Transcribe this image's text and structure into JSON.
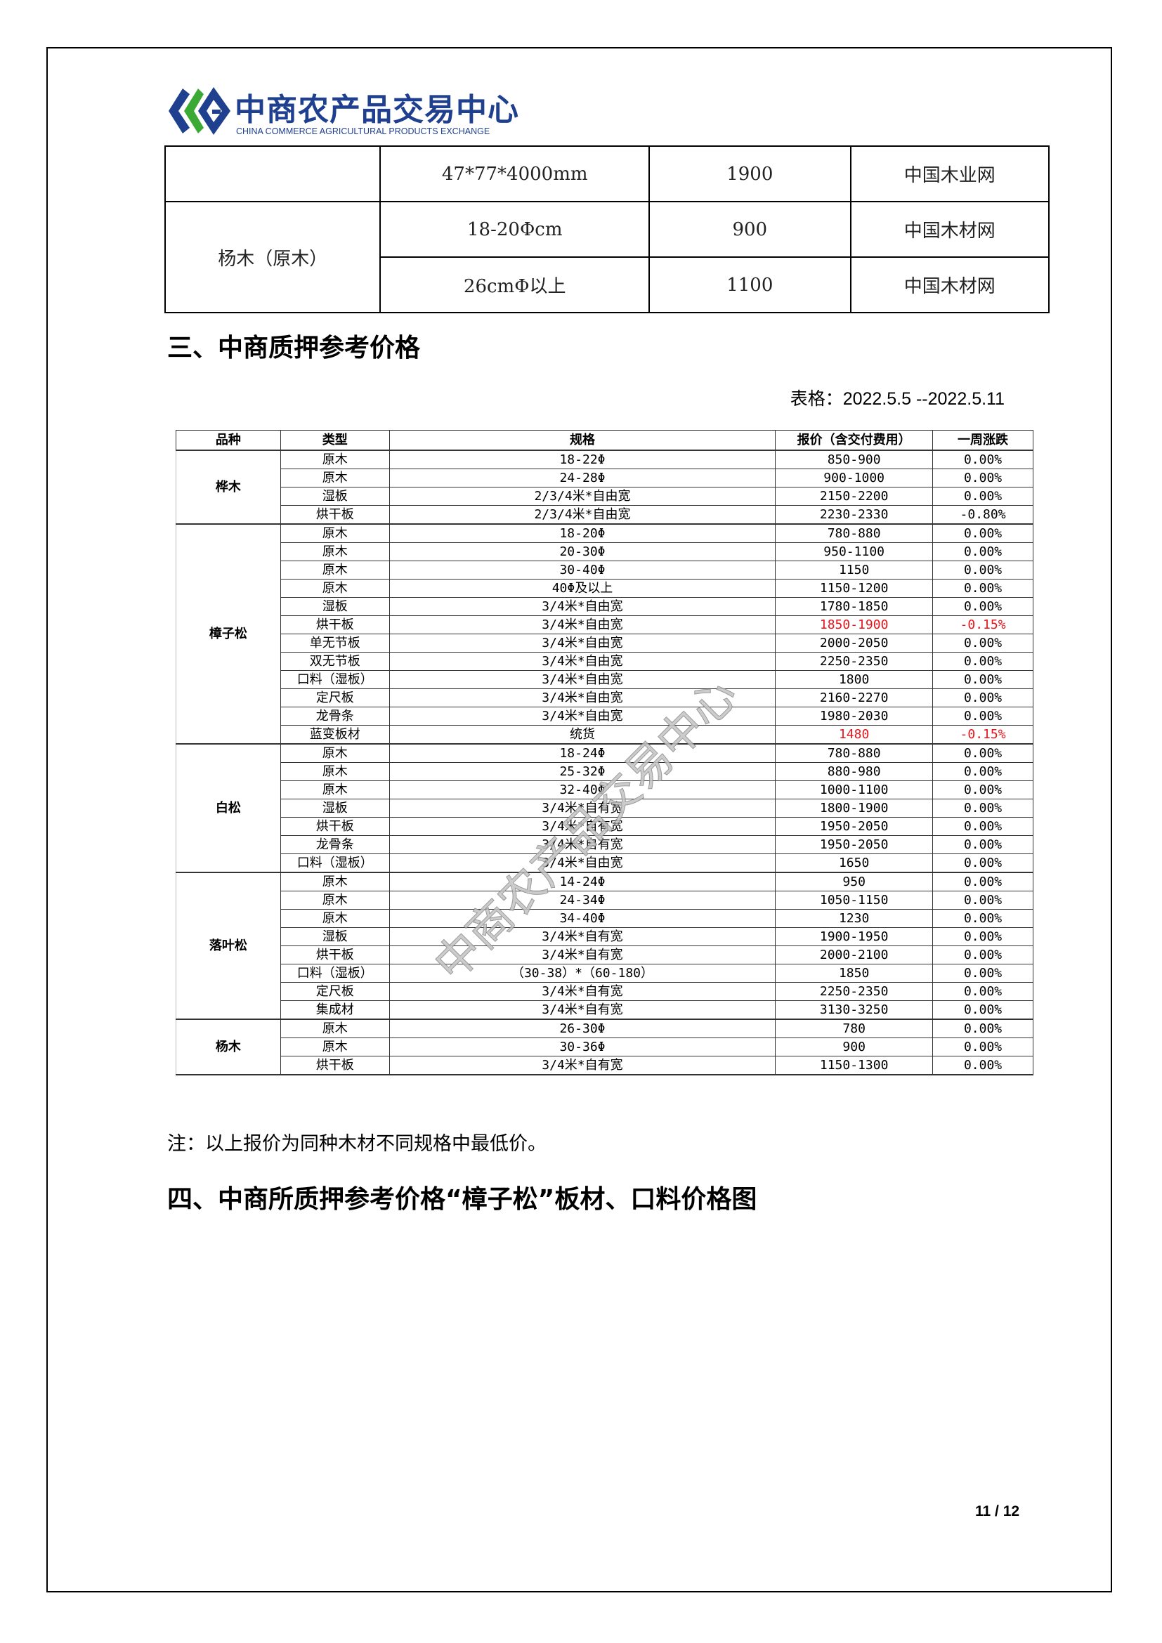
{
  "logo": {
    "name_cn": "中商农产品交易中心",
    "name_en": "CHINA COMMERCE AGRICULTURAL PRODUCTS EXCHANGE",
    "colors": {
      "blue": "#1f3f8f",
      "green": "#3aaa35"
    }
  },
  "top_table": {
    "rows": [
      {
        "variety": "",
        "spec": "47*77*4000mm",
        "price": "1900",
        "source": "中国木业网"
      },
      {
        "variety": "杨木（原木）",
        "spec": "18-20Φcm",
        "price": "900",
        "source": "中国木材网"
      },
      {
        "variety": "",
        "spec": "26cmΦ以上",
        "price": "1100",
        "source": "中国木材网"
      }
    ]
  },
  "section3": {
    "title": "三、中商质押参考价格",
    "date_label": "表格：2022.5.5 --2022.5.11"
  },
  "price_table": {
    "headers": [
      "品种",
      "类型",
      "规格",
      "报价（含交付费用）",
      "一周涨跌"
    ],
    "highlight_color": "#e8141c",
    "groups": [
      {
        "variety": "桦木",
        "rows": [
          {
            "type": "原木",
            "spec": "18-22Φ",
            "price": "850-900",
            "change": "0.00%"
          },
          {
            "type": "原木",
            "spec": "24-28Φ",
            "price": "900-1000",
            "change": "0.00%"
          },
          {
            "type": "湿板",
            "spec": "2/3/4米*自由宽",
            "price": "2150-2200",
            "change": "0.00%"
          },
          {
            "type": "烘干板",
            "spec": "2/3/4米*自由宽",
            "price": "2230-2330",
            "change": "-0.80%"
          }
        ]
      },
      {
        "variety": "樟子松",
        "rows": [
          {
            "type": "原木",
            "spec": "18-20Φ",
            "price": "780-880",
            "change": "0.00%"
          },
          {
            "type": "原木",
            "spec": "20-30Φ",
            "price": "950-1100",
            "change": "0.00%"
          },
          {
            "type": "原木",
            "spec": "30-40Φ",
            "price": "1150",
            "change": "0.00%"
          },
          {
            "type": "原木",
            "spec": "40Φ及以上",
            "price": "1150-1200",
            "change": "0.00%"
          },
          {
            "type": "湿板",
            "spec": "3/4米*自由宽",
            "price": "1780-1850",
            "change": "0.00%"
          },
          {
            "type": "烘干板",
            "spec": "3/4米*自由宽",
            "price": "1850-1900",
            "change": "-0.15%",
            "highlight": true
          },
          {
            "type": "单无节板",
            "spec": "3/4米*自由宽",
            "price": "2000-2050",
            "change": "0.00%"
          },
          {
            "type": "双无节板",
            "spec": "3/4米*自由宽",
            "price": "2250-2350",
            "change": "0.00%"
          },
          {
            "type": "口料（湿板）",
            "spec": "3/4米*自由宽",
            "price": "1800",
            "change": "0.00%"
          },
          {
            "type": "定尺板",
            "spec": "3/4米*自由宽",
            "price": "2160-2270",
            "change": "0.00%"
          },
          {
            "type": "龙骨条",
            "spec": "3/4米*自由宽",
            "price": "1980-2030",
            "change": "0.00%"
          },
          {
            "type": "蓝变板材",
            "spec": "统货",
            "price": "1480",
            "change": "-0.15%",
            "highlight": true
          }
        ]
      },
      {
        "variety": "白松",
        "rows": [
          {
            "type": "原木",
            "spec": "18-24Φ",
            "price": "780-880",
            "change": "0.00%"
          },
          {
            "type": "原木",
            "spec": "25-32Φ",
            "price": "880-980",
            "change": "0.00%"
          },
          {
            "type": "原木",
            "spec": "32-40Φ",
            "price": "1000-1100",
            "change": "0.00%"
          },
          {
            "type": "湿板",
            "spec": "3/4米*自有宽",
            "price": "1800-1900",
            "change": "0.00%"
          },
          {
            "type": "烘干板",
            "spec": "3/4米*自有宽",
            "price": "1950-2050",
            "change": "0.00%"
          },
          {
            "type": "龙骨条",
            "spec": "3/4米*自有宽",
            "price": "1950-2050",
            "change": "0.00%"
          },
          {
            "type": "口料（湿板）",
            "spec": "3/4米*自由宽",
            "price": "1650",
            "change": "0.00%"
          }
        ]
      },
      {
        "variety": "落叶松",
        "rows": [
          {
            "type": "原木",
            "spec": "14-24Φ",
            "price": "950",
            "change": "0.00%"
          },
          {
            "type": "原木",
            "spec": "24-34Φ",
            "price": "1050-1150",
            "change": "0.00%"
          },
          {
            "type": "原木",
            "spec": "34-40Φ",
            "price": "1230",
            "change": "0.00%"
          },
          {
            "type": "湿板",
            "spec": "3/4米*自有宽",
            "price": "1900-1950",
            "change": "0.00%"
          },
          {
            "type": "烘干板",
            "spec": "3/4米*自有宽",
            "price": "2000-2100",
            "change": "0.00%"
          },
          {
            "type": "口料（湿板）",
            "spec": "（30-38）*（60-180）",
            "price": "1850",
            "change": "0.00%"
          },
          {
            "type": "定尺板",
            "spec": "3/4米*自有宽",
            "price": "2250-2350",
            "change": "0.00%"
          },
          {
            "type": "集成材",
            "spec": "3/4米*自有宽",
            "price": "3130-3250",
            "change": "0.00%"
          }
        ]
      },
      {
        "variety": "杨木",
        "rows": [
          {
            "type": "原木",
            "spec": "26-30Φ",
            "price": "780",
            "change": "0.00%"
          },
          {
            "type": "原木",
            "spec": "30-36Φ",
            "price": "900",
            "change": "0.00%"
          },
          {
            "type": "烘干板",
            "spec": "3/4米*自有宽",
            "price": "1150-1300",
            "change": "0.00%"
          }
        ]
      }
    ]
  },
  "note": "注：以上报价为同种木材不同规格中最低价。",
  "section4": {
    "title": "四、中商所质押参考价格“樟子松”板材、口料价格图"
  },
  "watermark": "中商农产品交易中心",
  "page_number": "11 / 12"
}
